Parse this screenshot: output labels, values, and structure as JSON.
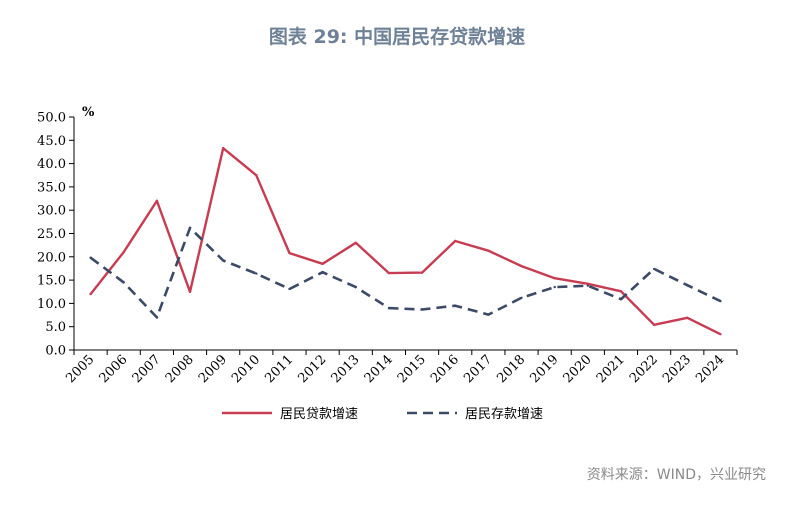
{
  "title": "图表 29: 中国居民存贷款增速",
  "source": "资料来源：WIND，兴业研究",
  "colors": {
    "loan": "#c83c52",
    "deposit": "#3b4a66"
  },
  "chart_data": {
    "type": "line",
    "title": "图表 29: 中国居民存贷款增速",
    "unit_label": "%",
    "categories": [
      "2005",
      "2006",
      "2007",
      "2008",
      "2009",
      "2010",
      "2011",
      "2012",
      "2013",
      "2014",
      "2015",
      "2016",
      "2017",
      "2018",
      "2019",
      "2020",
      "2021",
      "2022",
      "2023",
      "2024"
    ],
    "ylim": [
      0,
      50
    ],
    "yticks": [
      "0.0",
      "5.0",
      "10.0",
      "15.0",
      "20.0",
      "25.0",
      "30.0",
      "35.0",
      "40.0",
      "45.0",
      "50.0"
    ],
    "grid": false,
    "legend_position": "bottom",
    "series": [
      {
        "name": "居民贷款增速",
        "style": "solid",
        "color": "#c83c52",
        "values": [
          12.0,
          21.0,
          32.0,
          12.5,
          43.3,
          37.5,
          20.8,
          18.5,
          23.0,
          16.5,
          16.6,
          23.4,
          21.3,
          18.0,
          15.4,
          14.2,
          12.6,
          5.4,
          6.9,
          3.4
        ]
      },
      {
        "name": "居民存款增速",
        "style": "dashed",
        "color": "#3b4a66",
        "values": [
          19.8,
          14.5,
          7.0,
          26.2,
          19.2,
          16.4,
          13.1,
          16.7,
          13.5,
          9.0,
          8.7,
          9.5,
          7.6,
          11.2,
          13.5,
          13.8,
          10.9,
          17.4,
          13.9,
          10.5
        ]
      }
    ]
  }
}
